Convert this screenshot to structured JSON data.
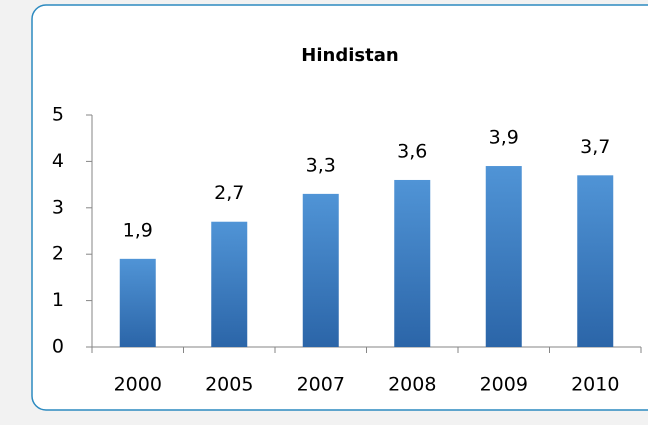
{
  "chart_data": {
    "type": "bar",
    "title": "Hindistan",
    "categories": [
      "2000",
      "2005",
      "2007",
      "2008",
      "2009",
      "2010"
    ],
    "values": [
      1.9,
      2.7,
      3.3,
      3.6,
      3.9,
      3.7
    ],
    "value_labels": [
      "1,9",
      "2,7",
      "3,3",
      "3,6",
      "3,9",
      "3,7"
    ],
    "color": "#5094d6",
    "ylim": [
      0,
      5
    ],
    "yticks": [
      0,
      1,
      2,
      3,
      4,
      5
    ],
    "grid": false
  }
}
